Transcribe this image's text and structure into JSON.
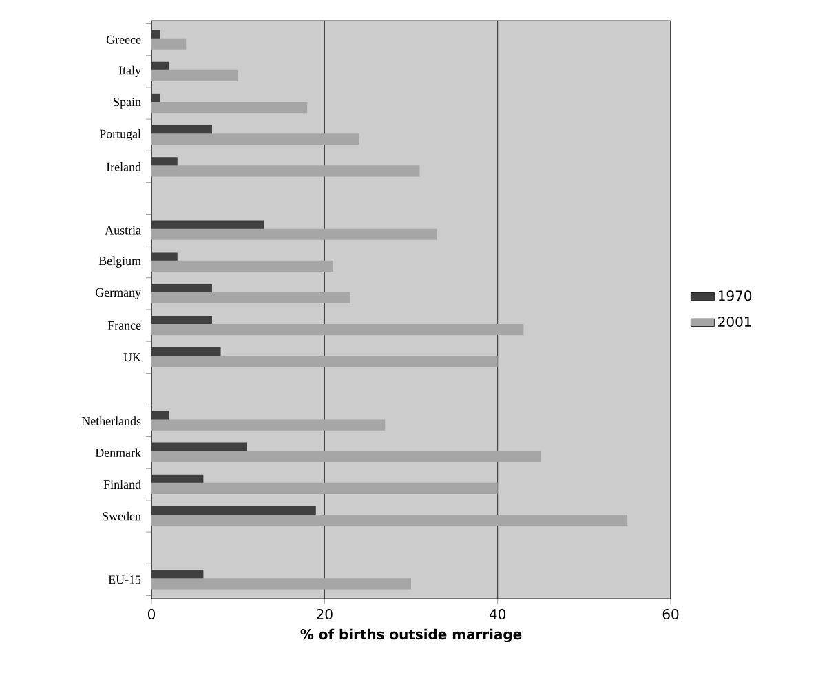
{
  "chart_data": {
    "type": "bar",
    "orientation": "horizontal",
    "xlabel": "% of births outside marriage",
    "categories": [
      "Greece",
      "Italy",
      "Spain",
      "Portugal",
      "Ireland",
      null,
      "Austria",
      "Belgium",
      "Germany",
      "France",
      "UK",
      null,
      "Netherlands",
      "Denmark",
      "Finland",
      "Sweden",
      null,
      "EU-15"
    ],
    "series": [
      {
        "name": "1970",
        "color": "#404040",
        "values": [
          1,
          2,
          1,
          7,
          3,
          null,
          13,
          3,
          7,
          7,
          8,
          null,
          2,
          11,
          6,
          19,
          null,
          6
        ]
      },
      {
        "name": "2001",
        "color": "#a6a6a6",
        "values": [
          4,
          10,
          18,
          24,
          31,
          null,
          33,
          21,
          23,
          43,
          40,
          null,
          27,
          45,
          40,
          55,
          null,
          30
        ]
      }
    ],
    "xlim": [
      0,
      60
    ],
    "xticks": [
      0,
      20,
      40,
      60
    ],
    "grid": "x",
    "legend": "right"
  }
}
